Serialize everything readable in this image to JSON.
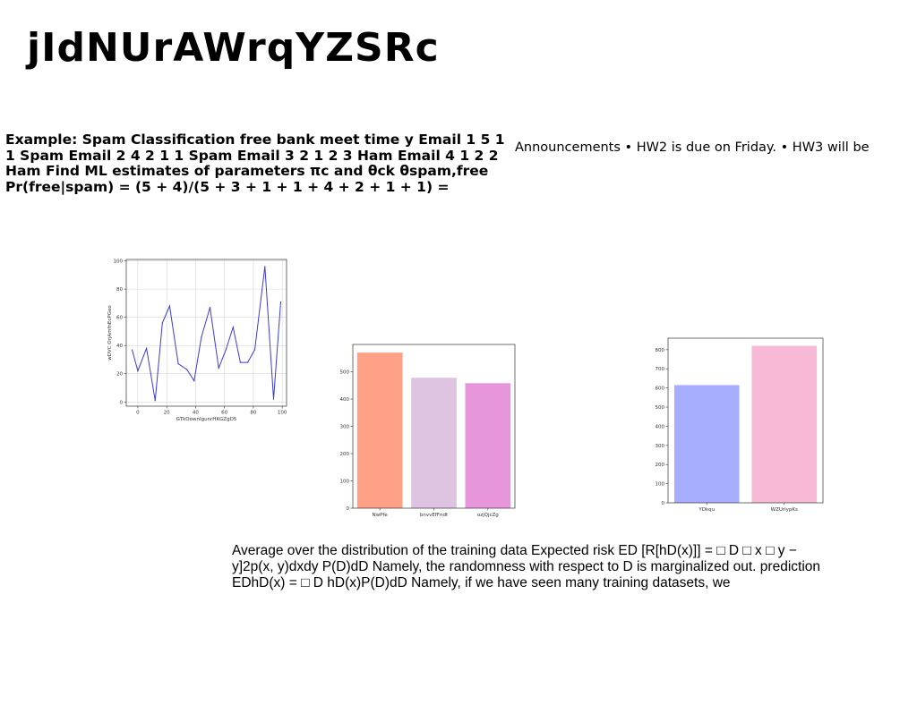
{
  "slide": {
    "title": "jIdNUrAWrqYZSRc",
    "example_text": "Example: Spam Classification free bank meet time y Email 1 5 1 1 Spam Email 2 4 2 1 1 Spam Email 3 2 1 2 3 Ham Email 4 1 2 2 Ham Find ML estimates of parameters πc and θck θspam,free Pr(free|spam) = (5 + 4)/(5 + 3 + 1 + 1 + 4 + 2 + 1 + 1) =",
    "announcements": "Announcements • HW2 is due on Friday. • HW3 will be",
    "paragraph": "Average over the distribution of the training data Expected risk ED [R[hD(x)]] = □ D □ x □ y − y]2p(x, y)dxdy P(D)dD Namely, the randomness with respect to D is marginalized out. prediction EDhD(x) = □ D hD(x)P(D)dD Namely, if we have seen many training datasets, we"
  },
  "chart_data": [
    {
      "type": "line",
      "xlabel": "GTkOownIgunrHKGZgD5",
      "ylabel": "wDVC OrjAmfnEcPGeo",
      "x": [
        -4,
        0,
        6,
        12,
        17,
        22,
        28,
        34,
        39,
        44,
        50,
        56,
        61,
        66,
        71,
        76,
        81,
        88,
        94,
        99
      ],
      "values": [
        37,
        22,
        38,
        1,
        56,
        68,
        27,
        23,
        15,
        46,
        67,
        24,
        37,
        53,
        28,
        28,
        37,
        96,
        2,
        71
      ],
      "xlim": [
        -8,
        103
      ],
      "ylim": [
        -3,
        101
      ],
      "xticks": [
        0,
        20,
        40,
        60,
        80,
        100
      ],
      "yticks": [
        0,
        20,
        40,
        60,
        80,
        100
      ],
      "grid": true,
      "color": "#3b3bdb"
    },
    {
      "type": "bar",
      "categories": [
        "NwPfe",
        "bnvvEfFndt",
        "ozjQjcZg"
      ],
      "values": [
        570,
        478,
        458
      ],
      "colors": [
        "#fea085",
        "#dfc4e2",
        "#e796dc"
      ],
      "ylim": [
        0,
        600
      ],
      "yticks": [
        0,
        100,
        200,
        300,
        400,
        500
      ],
      "grid": false
    },
    {
      "type": "bar",
      "categories": [
        "YDkqu",
        "WZUrlypKs"
      ],
      "values": [
        615,
        820
      ],
      "colors": [
        "#a6aefd",
        "#f7b9d5"
      ],
      "ylim": [
        0,
        860
      ],
      "yticks": [
        0,
        100,
        200,
        300,
        400,
        500,
        600,
        700,
        800
      ],
      "grid": false
    }
  ]
}
